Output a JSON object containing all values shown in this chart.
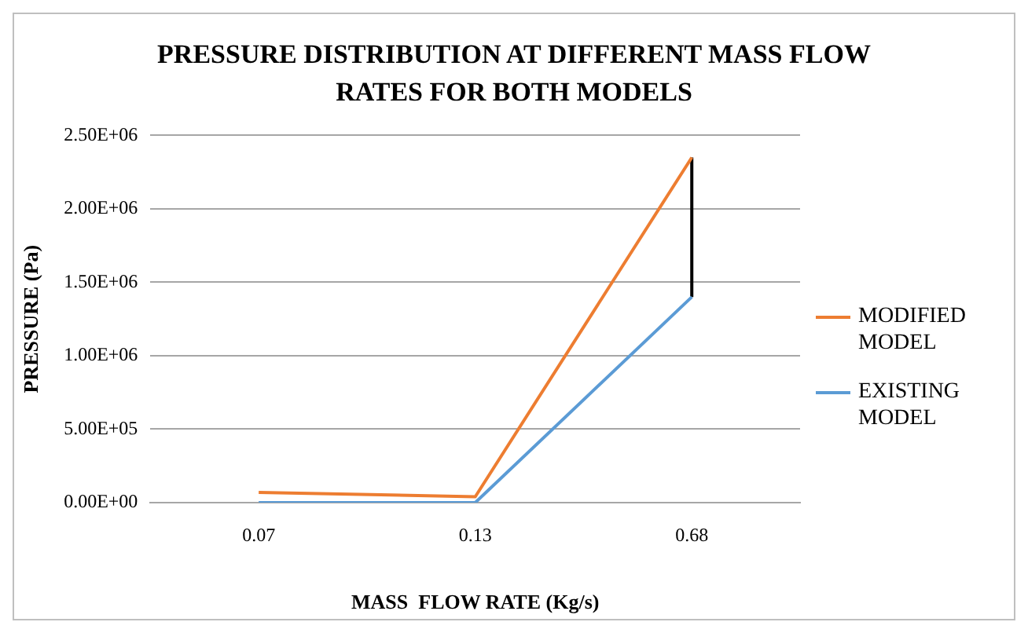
{
  "chart_data": {
    "type": "line",
    "title": "PRESSURE DISTRIBUTION AT DIFFERENT MASS FLOW RATES FOR BOTH MODELS",
    "xlabel": "MASS  FLOW RATE (Kg/s)",
    "ylabel": "PRESSURE (Pa)",
    "categories": [
      "0.07",
      "0.13",
      "0.68"
    ],
    "series": [
      {
        "name": "MODIFIED MODEL",
        "color": "#ed7d31",
        "values": [
          70000,
          40000,
          2350000
        ]
      },
      {
        "name": "EXISTING MODEL",
        "color": "#5b9bd5",
        "values": [
          0,
          0,
          1400000
        ]
      },
      {
        "type": "line",
        "color": "#000000",
        "x": [
          "0.68",
          "0.68"
        ],
        "values": [
          1400000,
          2350000
        ]
      }
    ],
    "ylim": [
      0,
      2500000
    ],
    "yticks": [
      {
        "value": 0,
        "label": "0.00E+00"
      },
      {
        "value": 500000,
        "label": "5.00E+05"
      },
      {
        "value": 1000000,
        "label": "1.00E+06"
      },
      {
        "value": 1500000,
        "label": "1.50E+06"
      },
      {
        "value": 2000000,
        "label": "2.00E+06"
      },
      {
        "value": 2500000,
        "label": "2.50E+06"
      }
    ],
    "grid": "y",
    "legend": "right",
    "marker": "none",
    "line_style": "solid"
  }
}
